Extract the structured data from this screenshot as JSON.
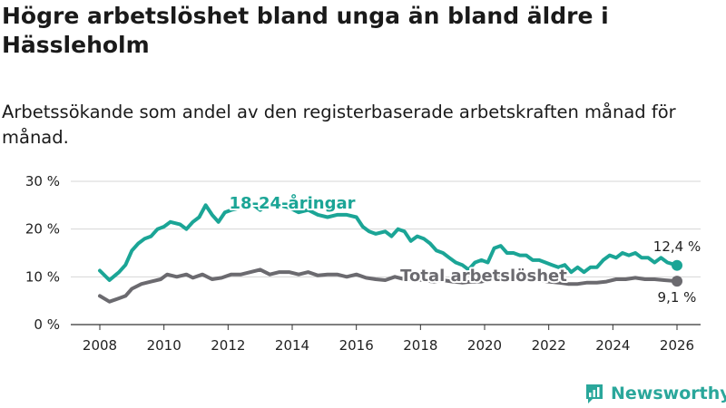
{
  "header": {
    "title": "Högre arbetslöshet bland unga än bland äldre i Hässleholm",
    "subtitle": "Arbetssökande som andel av den registerbaserade arbetskraften månad för månad."
  },
  "brand": {
    "name": "Newsworthy",
    "color": "#2aa79b",
    "icon": "bar-chart-icon"
  },
  "chart_data": {
    "type": "line",
    "xlim": [
      2008,
      2026
    ],
    "x_ticks": [
      "2008",
      "2010",
      "2012",
      "2014",
      "2016",
      "2018",
      "2020",
      "2022",
      "2024",
      "2026"
    ],
    "ylim": [
      0,
      30
    ],
    "y_ticks": [
      "0 %",
      "10 %",
      "20 %",
      "30 %"
    ],
    "grid": "horizontal",
    "series": [
      {
        "name": "18-24-åringar",
        "color": "#1ba596",
        "end_label": "12,4 %",
        "points": [
          [
            2008.0,
            11.3
          ],
          [
            2008.3,
            9.3
          ],
          [
            2008.6,
            11.0
          ],
          [
            2008.8,
            12.5
          ],
          [
            2009.0,
            15.5
          ],
          [
            2009.2,
            17.0
          ],
          [
            2009.4,
            18.0
          ],
          [
            2009.6,
            18.5
          ],
          [
            2009.8,
            20.0
          ],
          [
            2010.0,
            20.5
          ],
          [
            2010.2,
            21.5
          ],
          [
            2010.5,
            21.0
          ],
          [
            2010.7,
            20.0
          ],
          [
            2010.9,
            21.5
          ],
          [
            2011.1,
            22.5
          ],
          [
            2011.3,
            25.0
          ],
          [
            2011.5,
            23.0
          ],
          [
            2011.7,
            21.5
          ],
          [
            2011.9,
            23.5
          ],
          [
            2012.1,
            24.0
          ],
          [
            2012.4,
            24.5
          ],
          [
            2012.7,
            25.5
          ],
          [
            2013.0,
            24.0
          ],
          [
            2013.3,
            25.5
          ],
          [
            2013.6,
            25.0
          ],
          [
            2013.9,
            24.5
          ],
          [
            2014.2,
            23.5
          ],
          [
            2014.5,
            24.0
          ],
          [
            2014.8,
            23.0
          ],
          [
            2015.1,
            22.5
          ],
          [
            2015.4,
            23.0
          ],
          [
            2015.7,
            23.0
          ],
          [
            2016.0,
            22.5
          ],
          [
            2016.2,
            20.5
          ],
          [
            2016.4,
            19.5
          ],
          [
            2016.6,
            19.0
          ],
          [
            2016.9,
            19.5
          ],
          [
            2017.1,
            18.5
          ],
          [
            2017.3,
            20.0
          ],
          [
            2017.5,
            19.5
          ],
          [
            2017.7,
            17.5
          ],
          [
            2017.9,
            18.5
          ],
          [
            2018.1,
            18.0
          ],
          [
            2018.3,
            17.0
          ],
          [
            2018.5,
            15.5
          ],
          [
            2018.7,
            15.0
          ],
          [
            2018.9,
            14.0
          ],
          [
            2019.1,
            13.0
          ],
          [
            2019.3,
            12.5
          ],
          [
            2019.5,
            11.5
          ],
          [
            2019.7,
            13.0
          ],
          [
            2019.9,
            13.5
          ],
          [
            2020.1,
            13.0
          ],
          [
            2020.3,
            16.0
          ],
          [
            2020.5,
            16.5
          ],
          [
            2020.7,
            15.0
          ],
          [
            2020.9,
            15.0
          ],
          [
            2021.1,
            14.5
          ],
          [
            2021.3,
            14.5
          ],
          [
            2021.5,
            13.5
          ],
          [
            2021.7,
            13.5
          ],
          [
            2021.9,
            13.0
          ],
          [
            2022.1,
            12.5
          ],
          [
            2022.3,
            12.0
          ],
          [
            2022.5,
            12.5
          ],
          [
            2022.7,
            11.0
          ],
          [
            2022.9,
            12.0
          ],
          [
            2023.1,
            11.0
          ],
          [
            2023.3,
            12.0
          ],
          [
            2023.5,
            12.0
          ],
          [
            2023.7,
            13.5
          ],
          [
            2023.9,
            14.5
          ],
          [
            2024.1,
            14.0
          ],
          [
            2024.3,
            15.0
          ],
          [
            2024.5,
            14.5
          ],
          [
            2024.7,
            15.0
          ],
          [
            2024.9,
            14.0
          ],
          [
            2025.1,
            14.0
          ],
          [
            2025.3,
            13.0
          ],
          [
            2025.5,
            14.0
          ],
          [
            2025.7,
            13.0
          ],
          [
            2026.0,
            12.4
          ]
        ]
      },
      {
        "name": "Total arbetslöshet",
        "color": "#6b6a6f",
        "end_label": "9,1 %",
        "points": [
          [
            2008.0,
            6.0
          ],
          [
            2008.3,
            4.8
          ],
          [
            2008.6,
            5.5
          ],
          [
            2008.8,
            6.0
          ],
          [
            2009.0,
            7.5
          ],
          [
            2009.3,
            8.5
          ],
          [
            2009.6,
            9.0
          ],
          [
            2009.9,
            9.5
          ],
          [
            2010.1,
            10.5
          ],
          [
            2010.4,
            10.0
          ],
          [
            2010.7,
            10.5
          ],
          [
            2010.9,
            9.8
          ],
          [
            2011.2,
            10.5
          ],
          [
            2011.5,
            9.5
          ],
          [
            2011.8,
            9.8
          ],
          [
            2012.1,
            10.5
          ],
          [
            2012.4,
            10.5
          ],
          [
            2012.7,
            11.0
          ],
          [
            2013.0,
            11.5
          ],
          [
            2013.3,
            10.5
          ],
          [
            2013.6,
            11.0
          ],
          [
            2013.9,
            11.0
          ],
          [
            2014.2,
            10.5
          ],
          [
            2014.5,
            11.0
          ],
          [
            2014.8,
            10.3
          ],
          [
            2015.1,
            10.5
          ],
          [
            2015.4,
            10.5
          ],
          [
            2015.7,
            10.0
          ],
          [
            2016.0,
            10.5
          ],
          [
            2016.3,
            9.8
          ],
          [
            2016.6,
            9.5
          ],
          [
            2016.9,
            9.3
          ],
          [
            2017.2,
            10.0
          ],
          [
            2017.5,
            9.5
          ],
          [
            2017.8,
            9.5
          ],
          [
            2018.1,
            9.3
          ],
          [
            2018.4,
            9.0
          ],
          [
            2018.7,
            9.3
          ],
          [
            2019.0,
            9.0
          ],
          [
            2019.3,
            8.8
          ],
          [
            2019.6,
            9.0
          ],
          [
            2019.9,
            9.0
          ],
          [
            2020.2,
            9.5
          ],
          [
            2020.5,
            10.5
          ],
          [
            2020.8,
            10.0
          ],
          [
            2021.1,
            9.8
          ],
          [
            2021.4,
            9.5
          ],
          [
            2021.7,
            9.3
          ],
          [
            2022.0,
            9.0
          ],
          [
            2022.3,
            8.8
          ],
          [
            2022.6,
            8.5
          ],
          [
            2022.9,
            8.5
          ],
          [
            2023.2,
            8.8
          ],
          [
            2023.5,
            8.8
          ],
          [
            2023.8,
            9.0
          ],
          [
            2024.1,
            9.5
          ],
          [
            2024.4,
            9.5
          ],
          [
            2024.7,
            9.8
          ],
          [
            2025.0,
            9.5
          ],
          [
            2025.3,
            9.5
          ],
          [
            2025.6,
            9.3
          ],
          [
            2026.0,
            9.1
          ]
        ]
      }
    ]
  }
}
